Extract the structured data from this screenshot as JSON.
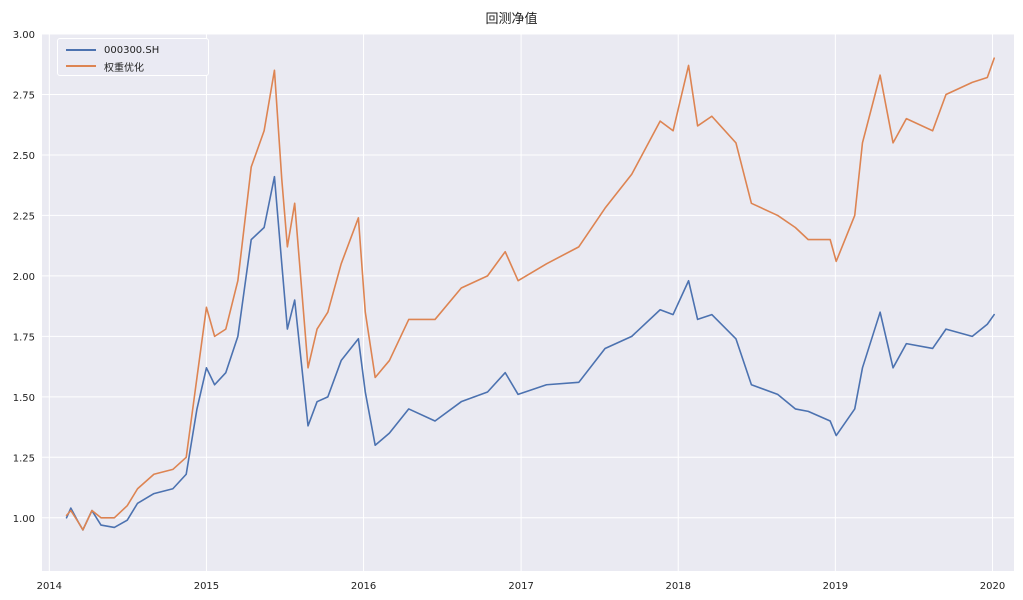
{
  "chart_data": {
    "type": "line",
    "title": "回测净值",
    "xlabel": "",
    "ylabel": "",
    "x_range": [
      "2013-12-15",
      "2020-02-20"
    ],
    "ylim": [
      0.78,
      3.0
    ],
    "grid": true,
    "legend_position": "top-left",
    "x_ticks": [
      {
        "date": "2014-01-01",
        "label": "2014"
      },
      {
        "date": "2015-01-01",
        "label": "2015"
      },
      {
        "date": "2016-01-01",
        "label": "2016"
      },
      {
        "date": "2017-01-01",
        "label": "2017"
      },
      {
        "date": "2018-01-01",
        "label": "2018"
      },
      {
        "date": "2019-01-01",
        "label": "2019"
      },
      {
        "date": "2020-01-01",
        "label": "2020"
      }
    ],
    "y_ticks": [
      {
        "value": 1.0,
        "label": "1.00"
      },
      {
        "value": 1.25,
        "label": "1.25"
      },
      {
        "value": 1.5,
        "label": "1.50"
      },
      {
        "value": 1.75,
        "label": "1.75"
      },
      {
        "value": 2.0,
        "label": "2.00"
      },
      {
        "value": 2.25,
        "label": "2.25"
      },
      {
        "value": 2.5,
        "label": "2.50"
      },
      {
        "value": 2.75,
        "label": "2.75"
      },
      {
        "value": 3.0,
        "label": "3.00"
      }
    ],
    "series": [
      {
        "name": "000300.SH",
        "color": "#4c72b0",
        "points": [
          [
            "2014-02-10",
            1.0
          ],
          [
            "2014-02-20",
            1.04
          ],
          [
            "2014-03-10",
            0.98
          ],
          [
            "2014-03-20",
            0.95
          ],
          [
            "2014-04-10",
            1.03
          ],
          [
            "2014-05-01",
            0.97
          ],
          [
            "2014-06-01",
            0.96
          ],
          [
            "2014-07-01",
            0.99
          ],
          [
            "2014-07-25",
            1.06
          ],
          [
            "2014-09-01",
            1.1
          ],
          [
            "2014-10-15",
            1.12
          ],
          [
            "2014-11-15",
            1.18
          ],
          [
            "2014-12-10",
            1.45
          ],
          [
            "2015-01-01",
            1.62
          ],
          [
            "2015-01-20",
            1.55
          ],
          [
            "2015-02-15",
            1.6
          ],
          [
            "2015-03-15",
            1.75
          ],
          [
            "2015-04-15",
            2.15
          ],
          [
            "2015-05-15",
            2.2
          ],
          [
            "2015-06-08",
            2.41
          ],
          [
            "2015-06-25",
            2.05
          ],
          [
            "2015-07-08",
            1.78
          ],
          [
            "2015-07-25",
            1.9
          ],
          [
            "2015-08-25",
            1.38
          ],
          [
            "2015-09-15",
            1.48
          ],
          [
            "2015-10-10",
            1.5
          ],
          [
            "2015-11-10",
            1.65
          ],
          [
            "2015-12-20",
            1.74
          ],
          [
            "2016-01-05",
            1.52
          ],
          [
            "2016-01-28",
            1.3
          ],
          [
            "2016-03-01",
            1.35
          ],
          [
            "2016-04-15",
            1.45
          ],
          [
            "2016-06-15",
            1.4
          ],
          [
            "2016-08-15",
            1.48
          ],
          [
            "2016-10-15",
            1.52
          ],
          [
            "2016-11-25",
            1.6
          ],
          [
            "2016-12-25",
            1.51
          ],
          [
            "2017-03-01",
            1.55
          ],
          [
            "2017-05-15",
            1.56
          ],
          [
            "2017-07-15",
            1.7
          ],
          [
            "2017-09-15",
            1.75
          ],
          [
            "2017-11-20",
            1.86
          ],
          [
            "2017-12-20",
            1.84
          ],
          [
            "2018-01-25",
            1.98
          ],
          [
            "2018-02-15",
            1.82
          ],
          [
            "2018-03-20",
            1.84
          ],
          [
            "2018-05-15",
            1.74
          ],
          [
            "2018-06-20",
            1.55
          ],
          [
            "2018-08-20",
            1.51
          ],
          [
            "2018-09-30",
            1.45
          ],
          [
            "2018-10-30",
            1.44
          ],
          [
            "2018-12-20",
            1.4
          ],
          [
            "2019-01-03",
            1.34
          ],
          [
            "2019-02-15",
            1.45
          ],
          [
            "2019-03-05",
            1.62
          ],
          [
            "2019-04-15",
            1.85
          ],
          [
            "2019-05-15",
            1.62
          ],
          [
            "2019-06-15",
            1.72
          ],
          [
            "2019-08-15",
            1.7
          ],
          [
            "2019-09-15",
            1.78
          ],
          [
            "2019-11-15",
            1.75
          ],
          [
            "2019-12-20",
            1.8
          ],
          [
            "2020-01-05",
            1.84
          ]
        ]
      },
      {
        "name": "权重优化",
        "color": "#dd8452",
        "points": [
          [
            "2014-02-10",
            1.01
          ],
          [
            "2014-02-20",
            1.03
          ],
          [
            "2014-03-10",
            0.98
          ],
          [
            "2014-03-20",
            0.95
          ],
          [
            "2014-04-10",
            1.03
          ],
          [
            "2014-05-01",
            1.0
          ],
          [
            "2014-06-01",
            1.0
          ],
          [
            "2014-07-01",
            1.05
          ],
          [
            "2014-07-25",
            1.12
          ],
          [
            "2014-09-01",
            1.18
          ],
          [
            "2014-10-15",
            1.2
          ],
          [
            "2014-11-15",
            1.25
          ],
          [
            "2014-12-10",
            1.58
          ],
          [
            "2015-01-01",
            1.87
          ],
          [
            "2015-01-20",
            1.75
          ],
          [
            "2015-02-15",
            1.78
          ],
          [
            "2015-03-15",
            1.98
          ],
          [
            "2015-04-15",
            2.45
          ],
          [
            "2015-05-15",
            2.6
          ],
          [
            "2015-06-08",
            2.85
          ],
          [
            "2015-06-25",
            2.4
          ],
          [
            "2015-07-08",
            2.12
          ],
          [
            "2015-07-25",
            2.3
          ],
          [
            "2015-08-25",
            1.62
          ],
          [
            "2015-09-15",
            1.78
          ],
          [
            "2015-10-10",
            1.85
          ],
          [
            "2015-11-10",
            2.05
          ],
          [
            "2015-12-20",
            2.24
          ],
          [
            "2016-01-05",
            1.85
          ],
          [
            "2016-01-28",
            1.58
          ],
          [
            "2016-03-01",
            1.65
          ],
          [
            "2016-04-15",
            1.82
          ],
          [
            "2016-06-15",
            1.82
          ],
          [
            "2016-08-15",
            1.95
          ],
          [
            "2016-10-15",
            2.0
          ],
          [
            "2016-11-25",
            2.1
          ],
          [
            "2016-12-25",
            1.98
          ],
          [
            "2017-03-01",
            2.05
          ],
          [
            "2017-05-15",
            2.12
          ],
          [
            "2017-07-15",
            2.28
          ],
          [
            "2017-09-15",
            2.42
          ],
          [
            "2017-11-20",
            2.64
          ],
          [
            "2017-12-20",
            2.6
          ],
          [
            "2018-01-25",
            2.87
          ],
          [
            "2018-02-15",
            2.62
          ],
          [
            "2018-03-20",
            2.66
          ],
          [
            "2018-05-15",
            2.55
          ],
          [
            "2018-06-20",
            2.3
          ],
          [
            "2018-08-20",
            2.25
          ],
          [
            "2018-09-30",
            2.2
          ],
          [
            "2018-10-30",
            2.15
          ],
          [
            "2018-12-20",
            2.15
          ],
          [
            "2019-01-03",
            2.06
          ],
          [
            "2019-02-15",
            2.25
          ],
          [
            "2019-03-05",
            2.55
          ],
          [
            "2019-04-15",
            2.83
          ],
          [
            "2019-05-15",
            2.55
          ],
          [
            "2019-06-15",
            2.65
          ],
          [
            "2019-08-15",
            2.6
          ],
          [
            "2019-09-15",
            2.75
          ],
          [
            "2019-11-15",
            2.8
          ],
          [
            "2019-12-20",
            2.82
          ],
          [
            "2020-01-05",
            2.9
          ]
        ]
      }
    ]
  }
}
